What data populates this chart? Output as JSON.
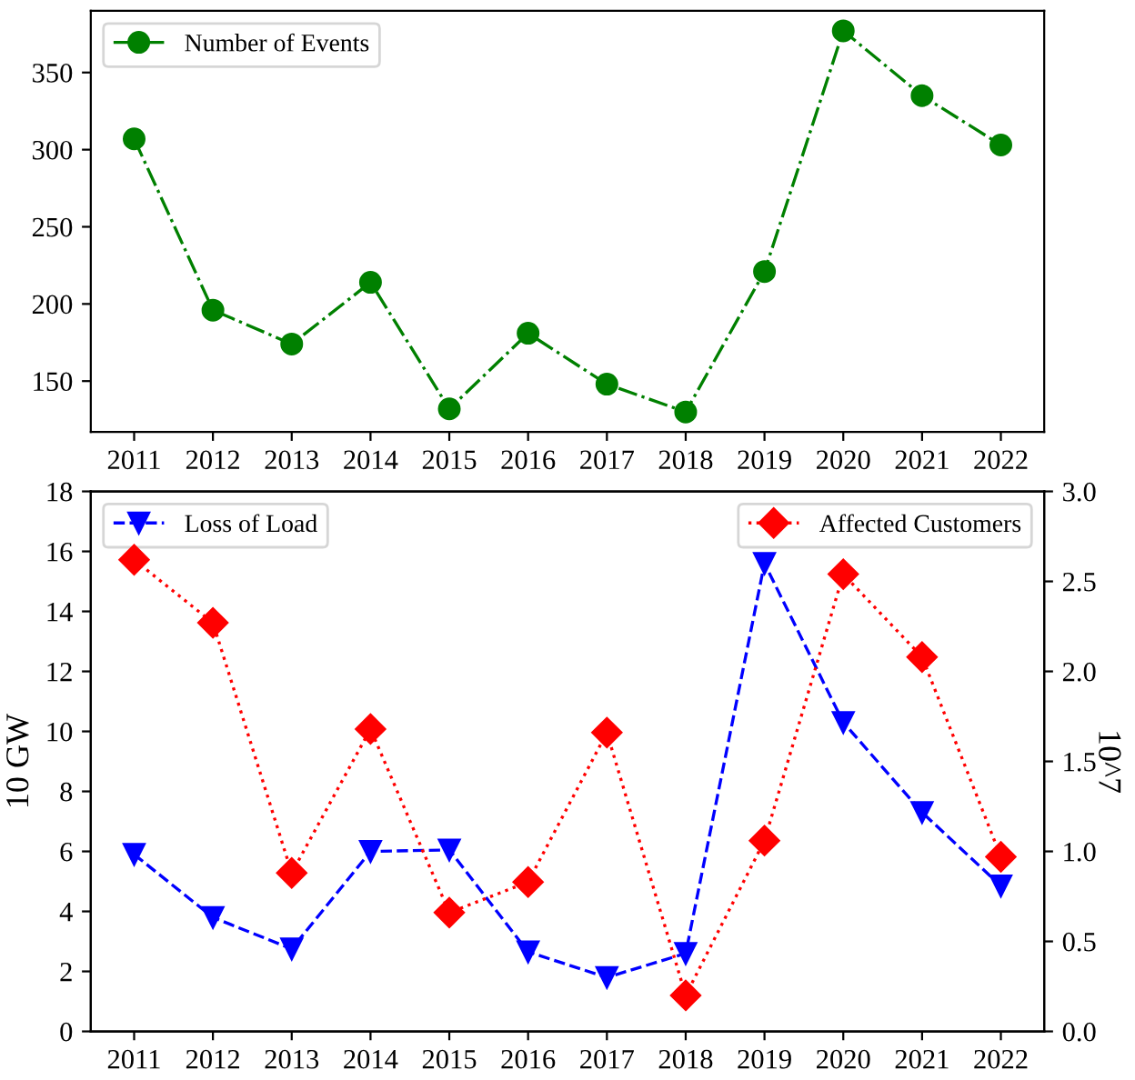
{
  "chart_data": [
    {
      "type": "line",
      "categories": [
        "2011",
        "2012",
        "2013",
        "2014",
        "2015",
        "2016",
        "2017",
        "2018",
        "2019",
        "2020",
        "2021",
        "2022"
      ],
      "series": [
        {
          "name": "Number of Events",
          "color": "#008000",
          "marker": "circle",
          "line_style": "dashdot",
          "values": [
            307,
            196,
            174,
            214,
            132,
            181,
            148,
            130,
            221,
            377,
            335,
            303
          ]
        }
      ],
      "ylim": [
        117,
        390
      ],
      "yticks": [
        150,
        200,
        250,
        300,
        350
      ],
      "grid": false,
      "legend": "top left"
    },
    {
      "type": "line",
      "categories": [
        "2011",
        "2012",
        "2013",
        "2014",
        "2015",
        "2016",
        "2017",
        "2018",
        "2019",
        "2020",
        "2021",
        "2022"
      ],
      "ylabel": "10 GW",
      "y2label": "10^7",
      "series": [
        {
          "name": "Loss of Load",
          "color": "#0000ff",
          "marker": "triangle",
          "line_style": "dashed",
          "values": [
            5.9,
            3.8,
            2.75,
            6.0,
            6.05,
            2.65,
            1.8,
            2.6,
            15.6,
            10.3,
            7.3,
            4.85
          ]
        },
        {
          "name": "Affected Customers",
          "color": "#ff0000",
          "marker": "diamond",
          "line_style": "dotted",
          "axis": "y2",
          "values": [
            2.62,
            2.27,
            0.88,
            1.68,
            0.66,
            0.83,
            1.66,
            0.2,
            1.06,
            2.54,
            2.08,
            0.97
          ]
        }
      ],
      "ylim": [
        0,
        18
      ],
      "yticks": [
        0,
        2,
        4,
        6,
        8,
        10,
        12,
        14,
        16,
        18
      ],
      "y2lim": [
        0.0,
        3.0
      ],
      "y2ticks": [
        {
          "value": 0,
          "label": "0.0"
        },
        {
          "value": 0.5,
          "label": "0.5"
        },
        {
          "value": 1,
          "label": "1.0"
        },
        {
          "value": 1.5,
          "label": "1.5"
        },
        {
          "value": 2,
          "label": "2.0"
        },
        {
          "value": 2.5,
          "label": "2.5"
        },
        {
          "value": 3,
          "label": "3.0"
        }
      ],
      "grid": false,
      "legend": "top"
    }
  ]
}
